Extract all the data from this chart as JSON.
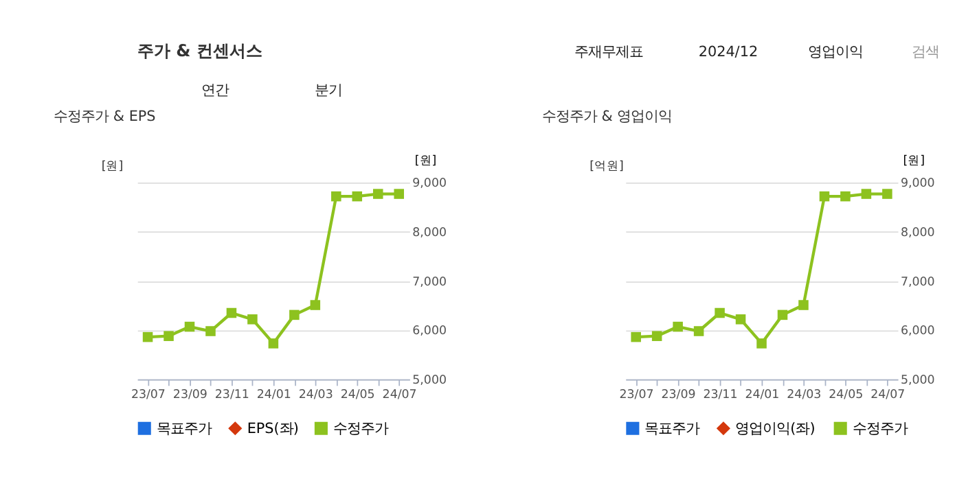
{
  "chart_data": [
    {
      "type": "line",
      "title": "수정주가 & EPS",
      "ylabel": "[원]",
      "y2label": "[원]",
      "annotations": [
        "주가 & 컨센서스",
        "주재무제표",
        "2024/12",
        "영업이익",
        "검색",
        "연간",
        "분기"
      ],
      "categories": [
        "23/07",
        null,
        "23/09",
        null,
        "23/11",
        null,
        "24/01",
        null,
        "24/03",
        null,
        "24/05",
        null,
        "24/07"
      ],
      "series": [
        {
          "name": "목표주가",
          "color": "#1e6fe0",
          "marker": "square",
          "axis": "y2",
          "values": [
            null,
            null,
            null,
            null,
            null,
            null,
            null,
            null,
            null,
            null,
            null,
            null,
            null
          ]
        },
        {
          "name": "EPS(좌)",
          "color": "#d4380d",
          "marker": "diamond",
          "values": [
            null,
            null,
            null,
            null,
            null,
            null,
            null,
            null,
            null,
            null,
            null,
            null,
            null
          ]
        },
        {
          "name": "수정주가",
          "color": "#8dc21f",
          "marker": "square",
          "axis": "y2",
          "values": [
            5860,
            5880,
            6070,
            5980,
            6350,
            6220,
            5730,
            6310,
            6510,
            8720,
            8720,
            8770,
            8770
          ]
        }
      ],
      "y2lim": [
        5000,
        9000
      ],
      "y2ticks": [
        {
          "value": 5000,
          "label": "5,000"
        },
        {
          "value": 6000,
          "label": "6,000"
        },
        {
          "value": 7000,
          "label": "7,000"
        },
        {
          "value": 8000,
          "label": "8,000"
        },
        {
          "value": 9000,
          "label": "9,000"
        }
      ],
      "grid": "y",
      "legend": "bottom"
    },
    {
      "type": "line",
      "title": "수정주가 & 영업이익",
      "ylabel": "[억원]",
      "y2label": "[원]",
      "categories": [
        "23/07",
        null,
        "23/09",
        null,
        "23/11",
        null,
        "24/01",
        null,
        "24/03",
        null,
        "24/05",
        null,
        "24/07"
      ],
      "series": [
        {
          "name": "목표주가",
          "color": "#1e6fe0",
          "marker": "square",
          "axis": "y2",
          "values": [
            null,
            null,
            null,
            null,
            null,
            null,
            null,
            null,
            null,
            null,
            null,
            null,
            null
          ]
        },
        {
          "name": "영업이익(좌)",
          "color": "#d4380d",
          "marker": "diamond",
          "values": [
            null,
            null,
            null,
            null,
            null,
            null,
            null,
            null,
            null,
            null,
            null,
            null,
            null
          ]
        },
        {
          "name": "수정주가",
          "color": "#8dc21f",
          "marker": "square",
          "axis": "y2",
          "values": [
            5860,
            5880,
            6070,
            5980,
            6350,
            6220,
            5730,
            6310,
            6510,
            8720,
            8720,
            8770,
            8770
          ]
        }
      ],
      "y2lim": [
        5000,
        9000
      ],
      "y2ticks": [
        {
          "value": 5000,
          "label": "5,000"
        },
        {
          "value": 6000,
          "label": "6,000"
        },
        {
          "value": 7000,
          "label": "7,000"
        },
        {
          "value": 8000,
          "label": "8,000"
        },
        {
          "value": 9000,
          "label": "9,000"
        }
      ],
      "grid": "y",
      "legend": "bottom"
    }
  ]
}
